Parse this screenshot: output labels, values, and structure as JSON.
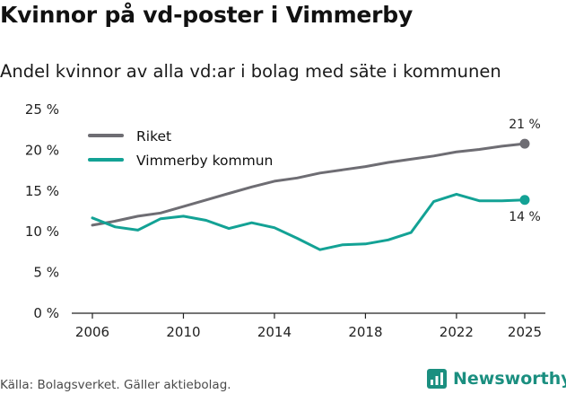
{
  "header": {
    "title": "Kvinnor på vd-poster i Vimmerby",
    "subtitle": "Andel kvinnor av alla vd:ar i bolag med säte i kommunen"
  },
  "footer": {
    "source": "Källa: Bolagsverket. Gäller aktiebolag.",
    "brand": "Newsworthy"
  },
  "chart_data": {
    "type": "line",
    "title": "Kvinnor på vd-poster i Vimmerby",
    "subtitle": "Andel kvinnor av alla vd:ar i bolag med säte i kommunen",
    "xlabel": "",
    "ylabel": "",
    "xlim": [
      2006,
      2025
    ],
    "ylim": [
      0,
      25
    ],
    "x_ticks": [
      2006,
      2010,
      2014,
      2018,
      2022,
      2025
    ],
    "x_tick_labels": [
      "2006",
      "2010",
      "2014",
      "2018",
      "2022",
      "2025"
    ],
    "y_ticks": [
      0,
      5,
      10,
      15,
      20,
      25
    ],
    "y_tick_labels": [
      "0 %",
      "5 %",
      "10 %",
      "15 %",
      "20 %",
      "25 %"
    ],
    "grid": false,
    "legend_position": "top-left",
    "x": [
      2006,
      2007,
      2008,
      2009,
      2010,
      2011,
      2012,
      2013,
      2014,
      2015,
      2016,
      2017,
      2018,
      2019,
      2020,
      2021,
      2022,
      2023,
      2024,
      2025
    ],
    "series": [
      {
        "name": "Riket",
        "color": "#6e6d73",
        "values": [
          10.8,
          11.3,
          11.9,
          12.3,
          13.1,
          13.9,
          14.7,
          15.5,
          16.2,
          16.6,
          17.2,
          17.6,
          18.0,
          18.5,
          18.9,
          19.3,
          19.8,
          20.1,
          20.5,
          20.8
        ],
        "end_label": "21 %"
      },
      {
        "name": "Vimmerby kommun",
        "color": "#13a295",
        "values": [
          11.7,
          10.6,
          10.2,
          11.6,
          11.9,
          11.4,
          10.4,
          11.1,
          10.5,
          9.2,
          7.8,
          8.4,
          8.5,
          9.0,
          9.9,
          13.7,
          14.6,
          13.8,
          13.8,
          13.9
        ],
        "end_label": "14 %"
      }
    ]
  }
}
